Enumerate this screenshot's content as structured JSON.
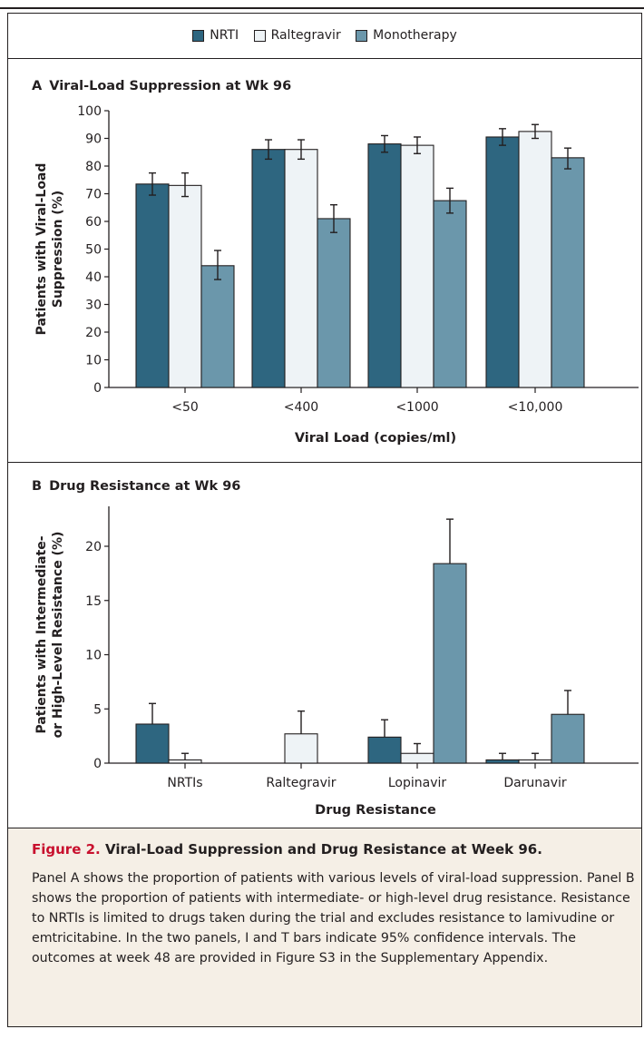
{
  "legend": {
    "items": [
      {
        "label": "NRTI",
        "color": "#2e6680"
      },
      {
        "label": "Raltegravir",
        "color": "#eef3f6"
      },
      {
        "label": "Monotherapy",
        "color": "#6b97ab"
      }
    ]
  },
  "panel_a": {
    "letter": "A",
    "title": "Viral-Load Suppression at Wk 96"
  },
  "panel_b": {
    "letter": "B",
    "title": "Drug Resistance at Wk 96"
  },
  "caption": {
    "figure_label": "Figure 2.",
    "title": "Viral-Load Suppression and Drug Resistance at Week 96.",
    "body": "Panel A shows the proportion of patients with various levels of viral-load suppression. Panel B shows the proportion of patients with intermediate- or high-level drug resistance. Resistance to NRTIs is limited to drugs taken during the trial and excludes resistance to lamivudine or emtricitabine. In the two panels, I and T bars indicate 95% confidence intervals. The outcomes at week 48 are provided in Figure S3 in the Supplementary Appendix."
  },
  "chart_data": [
    {
      "type": "bar",
      "title": "Viral-Load Suppression at Wk 96",
      "xlabel": "Viral Load (copies/ml)",
      "ylabel_lines": [
        "Patients with Viral-Load",
        "Suppression (%)"
      ],
      "ylim": [
        0,
        100
      ],
      "yticks": [
        0,
        10,
        20,
        30,
        40,
        50,
        60,
        70,
        80,
        90,
        100
      ],
      "categories": [
        "<50",
        "<400",
        "<1000",
        "<10,000"
      ],
      "series": [
        {
          "name": "NRTI",
          "values": [
            73.5,
            86,
            88,
            90.5
          ],
          "ci_low": [
            69.5,
            82.5,
            85,
            87.5
          ],
          "ci_high": [
            77.5,
            89.5,
            91,
            93.5
          ],
          "color": "#2e6680"
        },
        {
          "name": "Raltegravir",
          "values": [
            73,
            86,
            87.5,
            92.5
          ],
          "ci_low": [
            69,
            82.5,
            84.5,
            90
          ],
          "ci_high": [
            77.5,
            89.5,
            90.5,
            95
          ],
          "color": "#eef3f6"
        },
        {
          "name": "Monotherapy",
          "values": [
            44,
            61,
            67.5,
            83
          ],
          "ci_low": [
            39,
            56,
            63,
            79
          ],
          "ci_high": [
            49.5,
            66,
            72,
            86.5
          ],
          "color": "#6b97ab"
        }
      ],
      "error_bar_style": "I"
    },
    {
      "type": "bar",
      "title": "Drug Resistance at Wk 96",
      "xlabel": "Drug Resistance",
      "ylabel_lines": [
        "Patients with Intermediate-",
        "or High-Level Resistance (%)"
      ],
      "ylim": [
        0,
        23
      ],
      "yticks": [
        0,
        5,
        10,
        15,
        20
      ],
      "categories": [
        "NRTIs",
        "Raltegravir",
        "Lopinavir",
        "Darunavir"
      ],
      "series": [
        {
          "name": "NRTI",
          "values": [
            3.6,
            0,
            2.4,
            0.3
          ],
          "ci_high": [
            5.5,
            null,
            4.0,
            0.9
          ],
          "color": "#2e6680"
        },
        {
          "name": "Raltegravir",
          "values": [
            0.3,
            2.7,
            0.9,
            0.3
          ],
          "ci_high": [
            0.9,
            4.8,
            1.8,
            0.9
          ],
          "color": "#eef3f6"
        },
        {
          "name": "Monotherapy",
          "values": [
            0,
            0,
            18.4,
            4.5
          ],
          "ci_high": [
            null,
            null,
            22.5,
            6.7
          ],
          "color": "#6b97ab"
        }
      ],
      "error_bar_style": "T",
      "grouping_note": "Raltegravir category shows only the Raltegravir bar"
    }
  ]
}
